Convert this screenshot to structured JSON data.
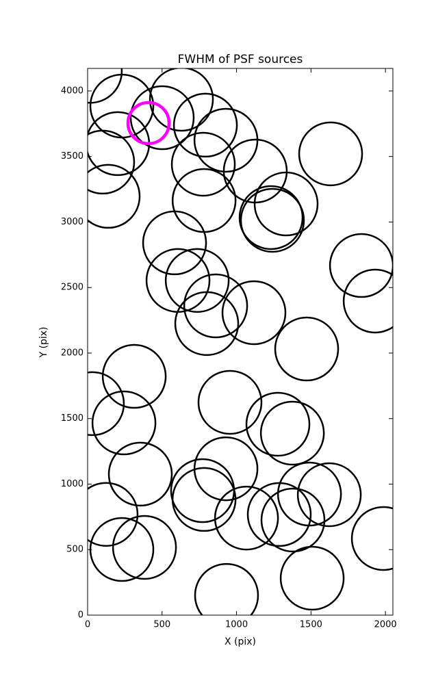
{
  "chart_data": {
    "type": "scatter",
    "title": "FWHM of PSF sources",
    "x_label": "X (pix)",
    "y_label": "Y (pix)",
    "xlim": [
      0,
      2050
    ],
    "ylim": [
      0,
      4172
    ],
    "xticks": [
      0,
      500,
      1000,
      1500,
      2000
    ],
    "yticks": [
      0,
      500,
      1000,
      1500,
      2000,
      2500,
      3000,
      3500,
      4000
    ],
    "series": [
      {
        "color": "#000000",
        "x": [
          18,
          230,
          630,
          501,
          791,
          929,
          202,
          101,
          777,
          138,
          1126,
          1632,
          782,
          1232,
          1333,
          1241,
          584,
          607,
          736,
          860,
          800,
          1117,
          1839,
          1931,
          1471,
          313,
          32,
          244,
          956,
          1278,
          1375,
          354,
          929,
          772,
          782,
          124,
          1067,
          1287,
          1379,
          1490,
          1623,
          1986,
          230,
          382,
          933,
          1508
        ],
        "y": [
          4150,
          3885,
          3937,
          3796,
          3739,
          3624,
          3598,
          3457,
          3441,
          3196,
          3389,
          3520,
          3164,
          3034,
          3138,
          3013,
          2841,
          2554,
          2554,
          2360,
          2225,
          2308,
          2668,
          2397,
          2031,
          1822,
          1614,
          1467,
          1624,
          1457,
          1389,
          1076,
          1117,
          950,
          883,
          769,
          741,
          768,
          726,
          924,
          919,
          585,
          501,
          517,
          151,
          282
        ]
      },
      {
        "color": "#ff00ff",
        "x": [
          409
        ],
        "y": [
          3755
        ]
      }
    ]
  }
}
